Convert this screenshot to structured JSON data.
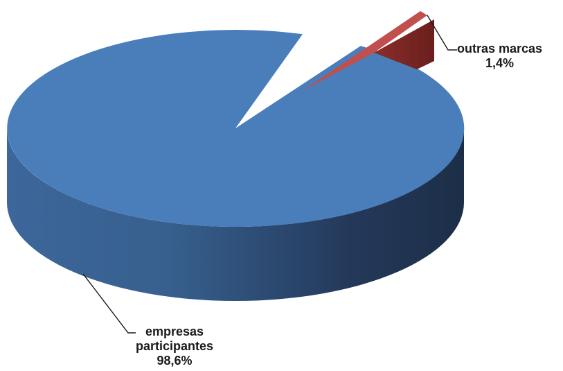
{
  "chart_data": {
    "type": "pie",
    "style": "3d-exploded",
    "title": "",
    "slices": [
      {
        "name": "empresas participantes",
        "label_lines": [
          "empresas",
          "participantes"
        ],
        "value_label": "98,6%",
        "value": 98.6,
        "color": "#4a7ebb"
      },
      {
        "name": "outras marcas",
        "label_lines": [
          "outras marcas"
        ],
        "value_label": "1,4%",
        "value": 1.4,
        "color": "#c0504d",
        "exploded": true
      }
    ],
    "colors": {
      "blue_top": "#4a7ebb",
      "blue_side_light": "#4473a9",
      "blue_side_dark": "#1d3049",
      "red_top": "#c0504d",
      "red_side": "#7a2624",
      "leader_line": "#1a1a1a"
    }
  }
}
